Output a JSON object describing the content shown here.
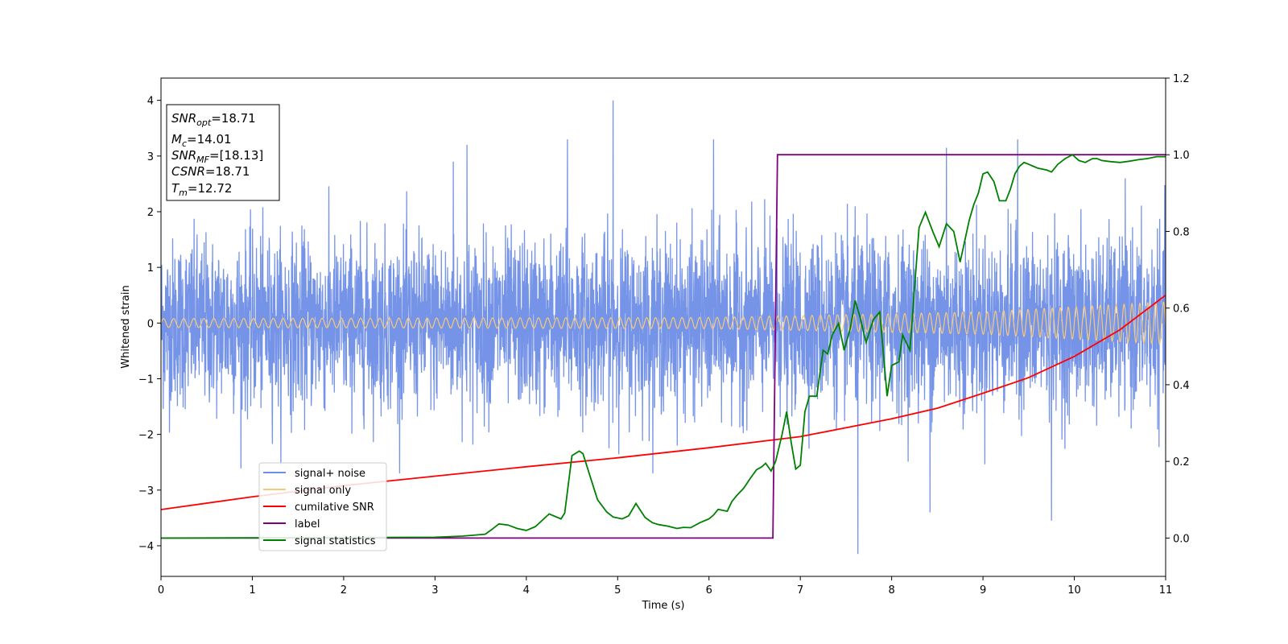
{
  "chart_data": {
    "type": "line",
    "xlabel": "Time (s)",
    "ylabel": "Whitened strain",
    "xlim": [
      0,
      11
    ],
    "ylim_left": [
      -4.55,
      4.4
    ],
    "ylim_right": [
      -0.1,
      1.2
    ],
    "xticks": [
      "0",
      "1",
      "2",
      "3",
      "4",
      "5",
      "6",
      "7",
      "8",
      "9",
      "10",
      "11"
    ],
    "yticks_left": [
      "−4",
      "−3",
      "−2",
      "−1",
      "0",
      "1",
      "2",
      "3",
      "4"
    ],
    "yticks_right": [
      "0.0",
      "0.2",
      "0.4",
      "0.6",
      "0.8",
      "1.0",
      "1.2"
    ],
    "grid": false,
    "legend_position": "lower-left",
    "legend": [
      {
        "name": "signal+ noise",
        "color": "#6f8ee6"
      },
      {
        "name": "signal only",
        "color": "#f5c97a"
      },
      {
        "name": "cumilative SNR",
        "color": "#ff0000"
      },
      {
        "name": "label",
        "color": "#800080"
      },
      {
        "name": "signal statistics",
        "color": "#008000"
      }
    ],
    "stats_box": [
      {
        "main": "SNR",
        "sub": "opt",
        "rest": "=18.71"
      },
      {
        "main": "M",
        "sub": "c",
        "rest": "=14.01"
      },
      {
        "main": "SNR",
        "sub": "MF",
        "rest": "=[18.13]"
      },
      {
        "main": "CSNR",
        "sub": "",
        "rest": "=18.71"
      },
      {
        "main": "T",
        "sub": "m",
        "rest": "=12.72"
      }
    ],
    "series": [
      {
        "name": "signal+ noise",
        "axis": "left",
        "style": "noise",
        "note_values": "dense whitened noise, envelope approx ±1.8 with spikes up to ±4",
        "noise_std": 0.75,
        "spikes": [
          [
            4.95,
            4.0
          ],
          [
            7.63,
            -4.15
          ],
          [
            3.35,
            3.2
          ],
          [
            6.05,
            3.3
          ],
          [
            8.6,
            3.15
          ],
          [
            9.38,
            3.3
          ],
          [
            4.45,
            3.3
          ],
          [
            9.75,
            -3.55
          ],
          [
            8.42,
            -3.4
          ],
          [
            3.2,
            2.9
          ]
        ]
      },
      {
        "name": "signal only",
        "axis": "left",
        "style": "chirp",
        "amplitude_points": [
          [
            0,
            0.08
          ],
          [
            6,
            0.1
          ],
          [
            9,
            0.2
          ],
          [
            11,
            0.38
          ]
        ]
      },
      {
        "name": "cumilative SNR",
        "axis": "left",
        "x": [
          0,
          1,
          2,
          3,
          4,
          5,
          6,
          7,
          8,
          8.5,
          9,
          9.5,
          10,
          10.5,
          11
        ],
        "values": [
          -3.35,
          -3.12,
          -2.92,
          -2.75,
          -2.58,
          -2.42,
          -2.24,
          -2.04,
          -1.72,
          -1.53,
          -1.26,
          -0.98,
          -0.6,
          -0.12,
          0.5
        ]
      },
      {
        "name": "label",
        "axis": "right",
        "x": [
          0,
          6.7,
          6.75,
          11
        ],
        "values": [
          0.0,
          0.0,
          1.0,
          1.0
        ]
      },
      {
        "name": "signal statistics",
        "axis": "right",
        "x": [
          0,
          3.0,
          3.3,
          3.55,
          3.62,
          3.7,
          3.8,
          3.9,
          4.0,
          4.1,
          4.25,
          4.38,
          4.42,
          4.5,
          4.58,
          4.62,
          4.7,
          4.78,
          4.88,
          4.95,
          5.05,
          5.12,
          5.2,
          5.3,
          5.38,
          5.45,
          5.55,
          5.65,
          5.72,
          5.8,
          5.9,
          6.0,
          6.05,
          6.1,
          6.2,
          6.25,
          6.3,
          6.38,
          6.45,
          6.52,
          6.58,
          6.62,
          6.68,
          6.73,
          6.8,
          6.85,
          6.9,
          6.95,
          7.0,
          7.05,
          7.1,
          7.18,
          7.25,
          7.3,
          7.35,
          7.42,
          7.48,
          7.55,
          7.6,
          7.65,
          7.72,
          7.8,
          7.87,
          7.95,
          8.0,
          8.08,
          8.12,
          8.2,
          8.3,
          8.37,
          8.45,
          8.52,
          8.6,
          8.68,
          8.75,
          8.85,
          8.9,
          8.95,
          9.0,
          9.05,
          9.12,
          9.18,
          9.25,
          9.3,
          9.35,
          9.4,
          9.45,
          9.5,
          9.55,
          9.6,
          9.7,
          9.75,
          9.82,
          9.9,
          9.98,
          10.05,
          10.12,
          10.2,
          10.25,
          10.3,
          10.4,
          10.5,
          10.6,
          10.7,
          10.8,
          10.9,
          11.0
        ],
        "values": [
          0.0,
          0.002,
          0.005,
          0.01,
          0.022,
          0.037,
          0.034,
          0.025,
          0.02,
          0.03,
          0.063,
          0.05,
          0.065,
          0.215,
          0.227,
          0.22,
          0.16,
          0.1,
          0.068,
          0.055,
          0.05,
          0.058,
          0.09,
          0.054,
          0.04,
          0.035,
          0.031,
          0.025,
          0.028,
          0.027,
          0.04,
          0.05,
          0.06,
          0.075,
          0.07,
          0.095,
          0.11,
          0.13,
          0.155,
          0.178,
          0.186,
          0.195,
          0.175,
          0.2,
          0.27,
          0.33,
          0.25,
          0.18,
          0.19,
          0.33,
          0.37,
          0.37,
          0.49,
          0.48,
          0.53,
          0.56,
          0.49,
          0.55,
          0.62,
          0.58,
          0.51,
          0.57,
          0.59,
          0.37,
          0.45,
          0.46,
          0.53,
          0.49,
          0.81,
          0.85,
          0.8,
          0.76,
          0.82,
          0.8,
          0.72,
          0.83,
          0.87,
          0.9,
          0.95,
          0.955,
          0.93,
          0.88,
          0.88,
          0.91,
          0.95,
          0.97,
          0.98,
          0.975,
          0.97,
          0.965,
          0.96,
          0.955,
          0.975,
          0.99,
          1.0,
          0.985,
          0.98,
          0.99,
          0.99,
          0.985,
          0.982,
          0.98,
          0.983,
          0.987,
          0.99,
          0.995,
          0.995
        ]
      }
    ]
  }
}
